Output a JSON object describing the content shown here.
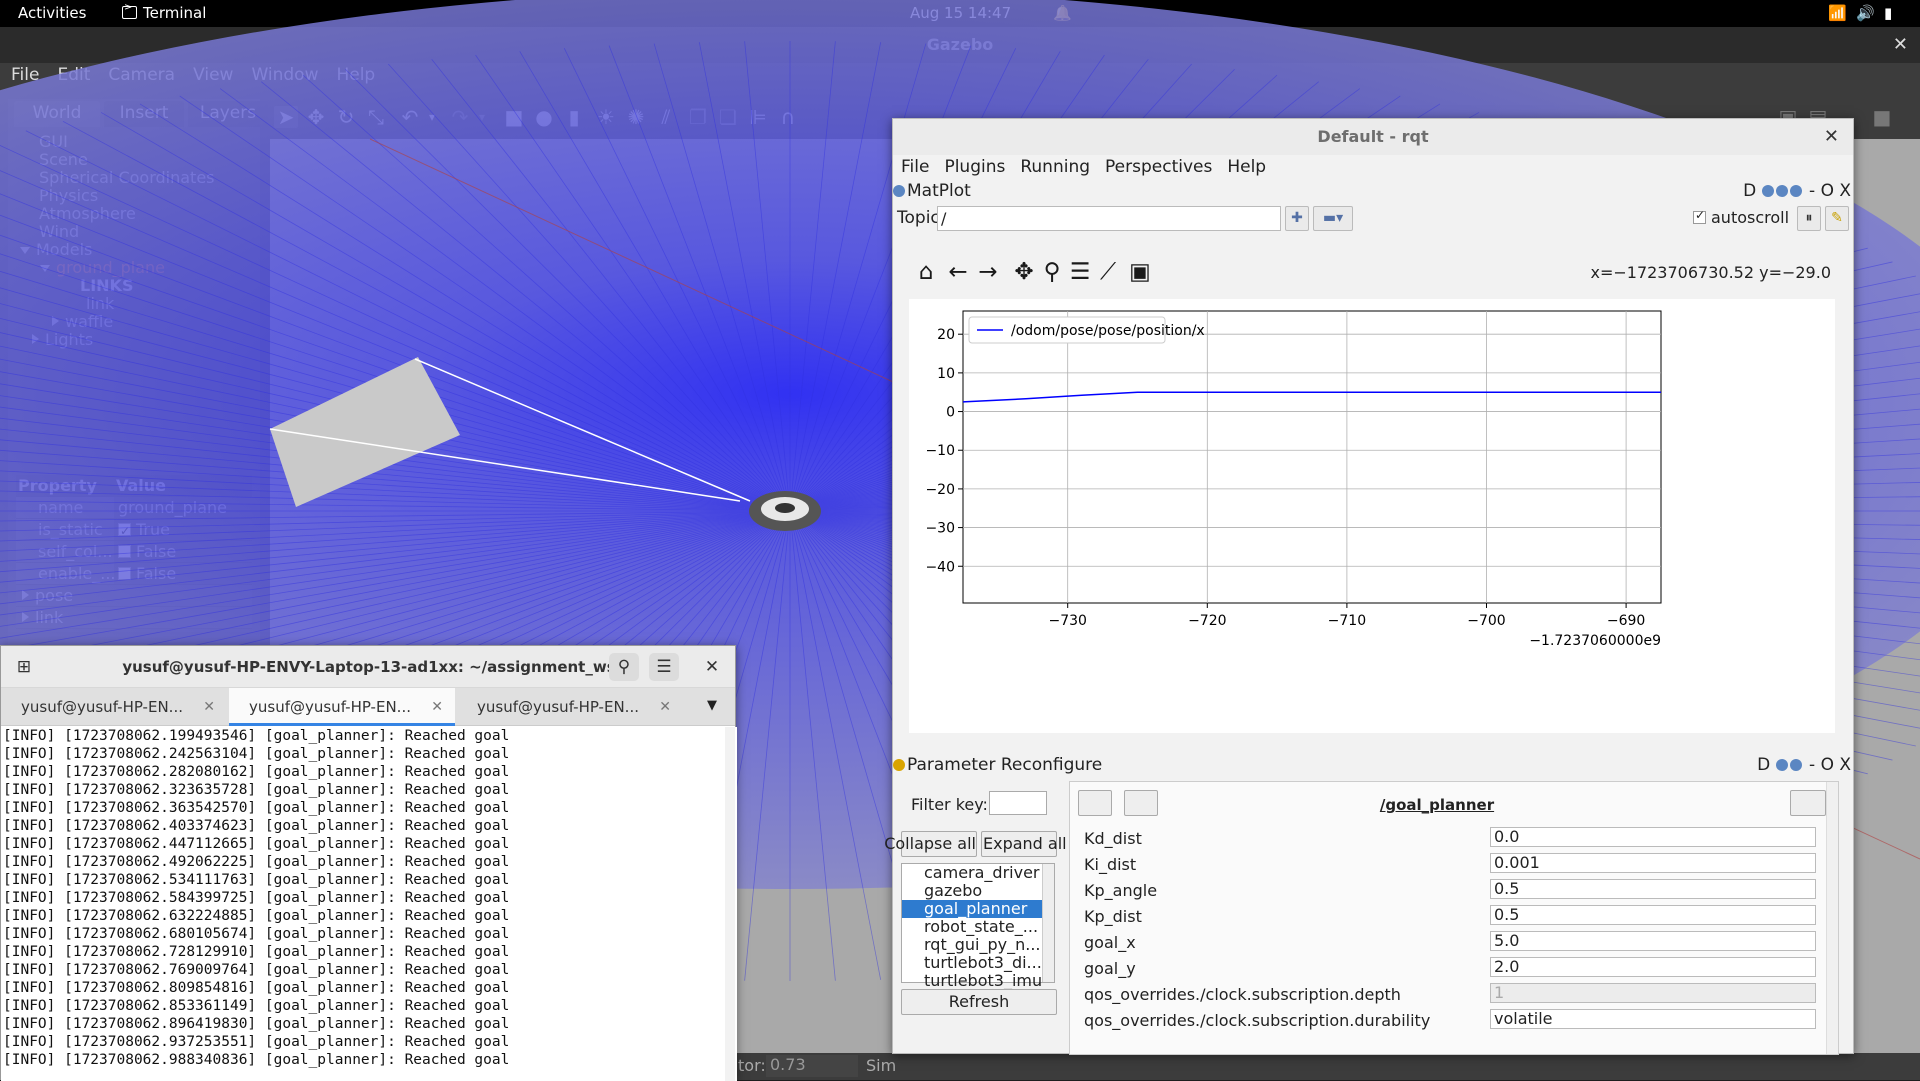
{
  "topbar": {
    "activities": "Activities",
    "app": "Terminal",
    "datetime": "Aug 15  14:47"
  },
  "gazebo": {
    "title": "Gazebo",
    "menu": [
      "File",
      "Edit",
      "Camera",
      "View",
      "Window",
      "Help"
    ],
    "tabs": [
      "World",
      "Insert",
      "Layers"
    ],
    "tree": {
      "gui": "GUI",
      "scene": "Scene",
      "spherical": "Spherical Coordinates",
      "physics": "Physics",
      "atmosphere": "Atmosphere",
      "wind": "Wind",
      "models": "Models",
      "ground_plane": "ground_plane",
      "links": "LINKS",
      "link": "link",
      "waffle": "waffle",
      "lights": "Lights"
    },
    "property": {
      "header_property": "Property",
      "header_value": "Value",
      "rows": [
        {
          "key": "name",
          "value": "ground_plane"
        },
        {
          "key": "is_static",
          "value": "True"
        },
        {
          "key": "self_col...",
          "value": "False"
        },
        {
          "key": "enable_...",
          "value": "False"
        }
      ],
      "pose": "pose",
      "link": "link"
    },
    "status": {
      "factor_label": "tor:",
      "factor_value": "0.73",
      "sim_label": "Sim"
    }
  },
  "rqt": {
    "title": "Default - rqt",
    "menu": [
      "File",
      "Plugins",
      "Running",
      "Perspectives",
      "Help"
    ],
    "matplot": {
      "title": "MatPlot",
      "controls": "D",
      "window_controls": "- O X",
      "topic_label": "Topic",
      "topic_value": "/",
      "autoscroll_label": "autoscroll",
      "coord_readout": "x=−1723706730.52 y=−29.0"
    },
    "param": {
      "title": "Parameter Reconfigure",
      "controls": "D",
      "window_controls": "- O X",
      "filter_label": "Filter key:",
      "collapse_label": "Collapse all",
      "expand_label": "Expand all",
      "nodes": [
        "camera_driver",
        "gazebo",
        "goal_planner",
        "robot_state_...",
        "rqt_gui_py_n...",
        "turtlebot3_di...",
        "turtlebot3_imu"
      ],
      "selected_node": "goal_planner",
      "refresh_label": "Refresh",
      "node_title": "/goal_planner",
      "params": [
        {
          "key": "Kd_dist",
          "value": "0.0"
        },
        {
          "key": "Ki_dist",
          "value": "0.001"
        },
        {
          "key": "Kp_angle",
          "value": "0.5"
        },
        {
          "key": "Kp_dist",
          "value": "0.5"
        },
        {
          "key": "goal_x",
          "value": "5.0"
        },
        {
          "key": "goal_y",
          "value": "2.0"
        },
        {
          "key": "qos_overrides./clock.subscription.depth",
          "value": "1"
        },
        {
          "key": "qos_overrides./clock.subscription.durability",
          "value": "volatile"
        }
      ]
    }
  },
  "chart_data": {
    "type": "line",
    "title": "",
    "xlabel": "",
    "ylabel": "",
    "x_offset_label": "−1.7237060000e9",
    "xlim": [
      -737.5,
      -687.5
    ],
    "ylim": [
      -49.5,
      26
    ],
    "x_ticks": [
      -730,
      -720,
      -710,
      -700,
      -690
    ],
    "y_ticks": [
      20,
      10,
      0,
      -10,
      -20,
      -30,
      -40
    ],
    "x_tick_labels": [
      "−730",
      "−720",
      "−710",
      "−700",
      "−690"
    ],
    "y_tick_labels": [
      "20",
      "10",
      "0",
      "−10",
      "−20",
      "−30",
      "−40"
    ],
    "grid": true,
    "legend_position": "top-left",
    "series": [
      {
        "name": "/odom/pose/pose/position/x",
        "color": "#0000ff",
        "x": [
          -737.5,
          -733,
          -729,
          -725,
          -720,
          -710,
          -700,
          -687.5
        ],
        "y": [
          2.5,
          3.3,
          4.2,
          5.0,
          5.0,
          5.0,
          5.0,
          5.0
        ]
      }
    ]
  },
  "terminal": {
    "title": "yusuf@yusuf-HP-ENVY-Laptop-13-ad1xx: ~/assignment_ws",
    "tabs": [
      "yusuf@yusuf-HP-EN...",
      "yusuf@yusuf-HP-EN...",
      "yusuf@yusuf-HP-EN..."
    ],
    "lines": [
      "[INFO] [1723708062.199493546] [goal_planner]: Reached goal",
      "[INFO] [1723708062.242563104] [goal_planner]: Reached goal",
      "[INFO] [1723708062.282080162] [goal_planner]: Reached goal",
      "[INFO] [1723708062.323635728] [goal_planner]: Reached goal",
      "[INFO] [1723708062.363542570] [goal_planner]: Reached goal",
      "[INFO] [1723708062.403374623] [goal_planner]: Reached goal",
      "[INFO] [1723708062.447112665] [goal_planner]: Reached goal",
      "[INFO] [1723708062.492062225] [goal_planner]: Reached goal",
      "[INFO] [1723708062.534111763] [goal_planner]: Reached goal",
      "[INFO] [1723708062.584399725] [goal_planner]: Reached goal",
      "[INFO] [1723708062.632224885] [goal_planner]: Reached goal",
      "[INFO] [1723708062.680105674] [goal_planner]: Reached goal",
      "[INFO] [1723708062.728129910] [goal_planner]: Reached goal",
      "[INFO] [1723708062.769009764] [goal_planner]: Reached goal",
      "[INFO] [1723708062.809854816] [goal_planner]: Reached goal",
      "[INFO] [1723708062.853361149] [goal_planner]: Reached goal",
      "[INFO] [1723708062.896419830] [goal_planner]: Reached goal",
      "[INFO] [1723708062.937253551] [goal_planner]: Reached goal",
      "[INFO] [1723708062.988340836] [goal_planner]: Reached goal"
    ]
  }
}
